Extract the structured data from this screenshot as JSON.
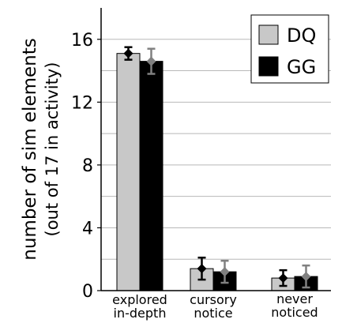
{
  "chart_data": {
    "type": "bar",
    "title": "",
    "xlabel": "",
    "ylabel_lines": [
      "number of sim elements",
      "(out of 17 in activity)"
    ],
    "ylim": [
      0,
      18
    ],
    "yticks": [
      0,
      4,
      8,
      12,
      16
    ],
    "grid": true,
    "legend_position": "top-right",
    "categories": [
      [
        "explored",
        "in-depth"
      ],
      [
        "cursory",
        "notice"
      ],
      [
        "never",
        "noticed"
      ]
    ],
    "series": [
      {
        "name": "DQ",
        "color": "#c8c8c8",
        "errorbar_color": "#000000",
        "values": [
          15.1,
          1.4,
          0.8
        ],
        "err_low": [
          0.4,
          0.7,
          0.5
        ],
        "err_high": [
          0.4,
          0.7,
          0.5
        ]
      },
      {
        "name": "GG",
        "color": "#000000",
        "errorbar_color": "#808080",
        "values": [
          14.6,
          1.2,
          0.9
        ],
        "err_low": [
          0.8,
          0.7,
          0.7
        ],
        "err_high": [
          0.8,
          0.7,
          0.7
        ]
      }
    ]
  }
}
